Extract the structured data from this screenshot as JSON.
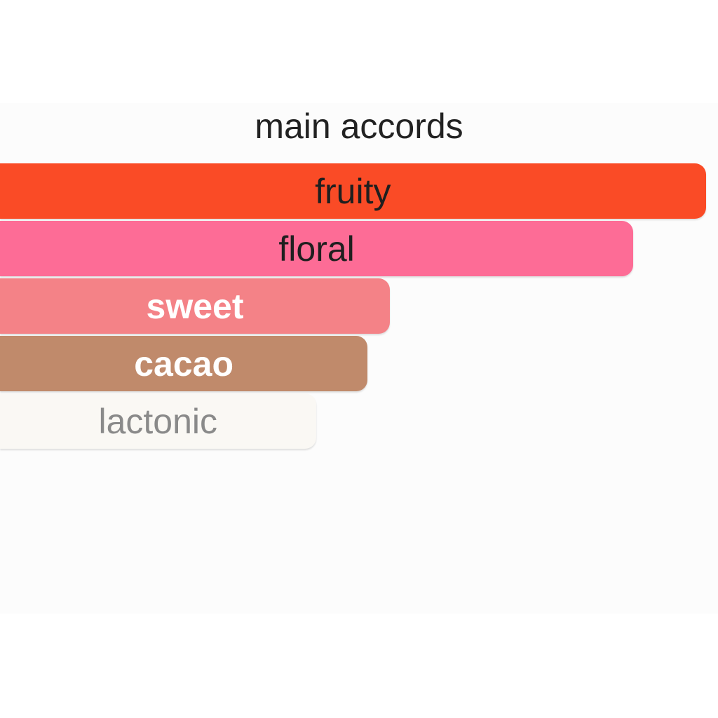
{
  "page": {
    "background": "#ffffff",
    "panel_background": "#fcfcfc"
  },
  "header": {
    "title": "main accords",
    "title_color": "#222222"
  },
  "chart_data": {
    "type": "bar",
    "orientation": "horizontal",
    "title": "main accords",
    "categories": [
      "fruity",
      "floral",
      "sweet",
      "cacao",
      "lactonic"
    ],
    "values": [
      98.3,
      88.2,
      54.3,
      51.2,
      44.0
    ],
    "value_unit": "percent-of-panel-width",
    "xlim": [
      0,
      100
    ],
    "grid": false,
    "legend": false,
    "axes_visible": false,
    "bars": [
      {
        "label": "fruity",
        "width_pct": 98.3,
        "color": "#fa4b26",
        "label_color": "#1f1f1f",
        "bold": false
      },
      {
        "label": "floral",
        "width_pct": 88.2,
        "color": "#fd6c96",
        "label_color": "#1f1f1f",
        "bold": false
      },
      {
        "label": "sweet",
        "width_pct": 54.3,
        "color": "#f48287",
        "label_color": "#ffffff",
        "bold": true
      },
      {
        "label": "cacao",
        "width_pct": 51.2,
        "color": "#c08a6b",
        "label_color": "#ffffff",
        "bold": true
      },
      {
        "label": "lactonic",
        "width_pct": 44.0,
        "color": "#faf8f4",
        "label_color": "#8a8a8a",
        "bold": false
      }
    ]
  }
}
